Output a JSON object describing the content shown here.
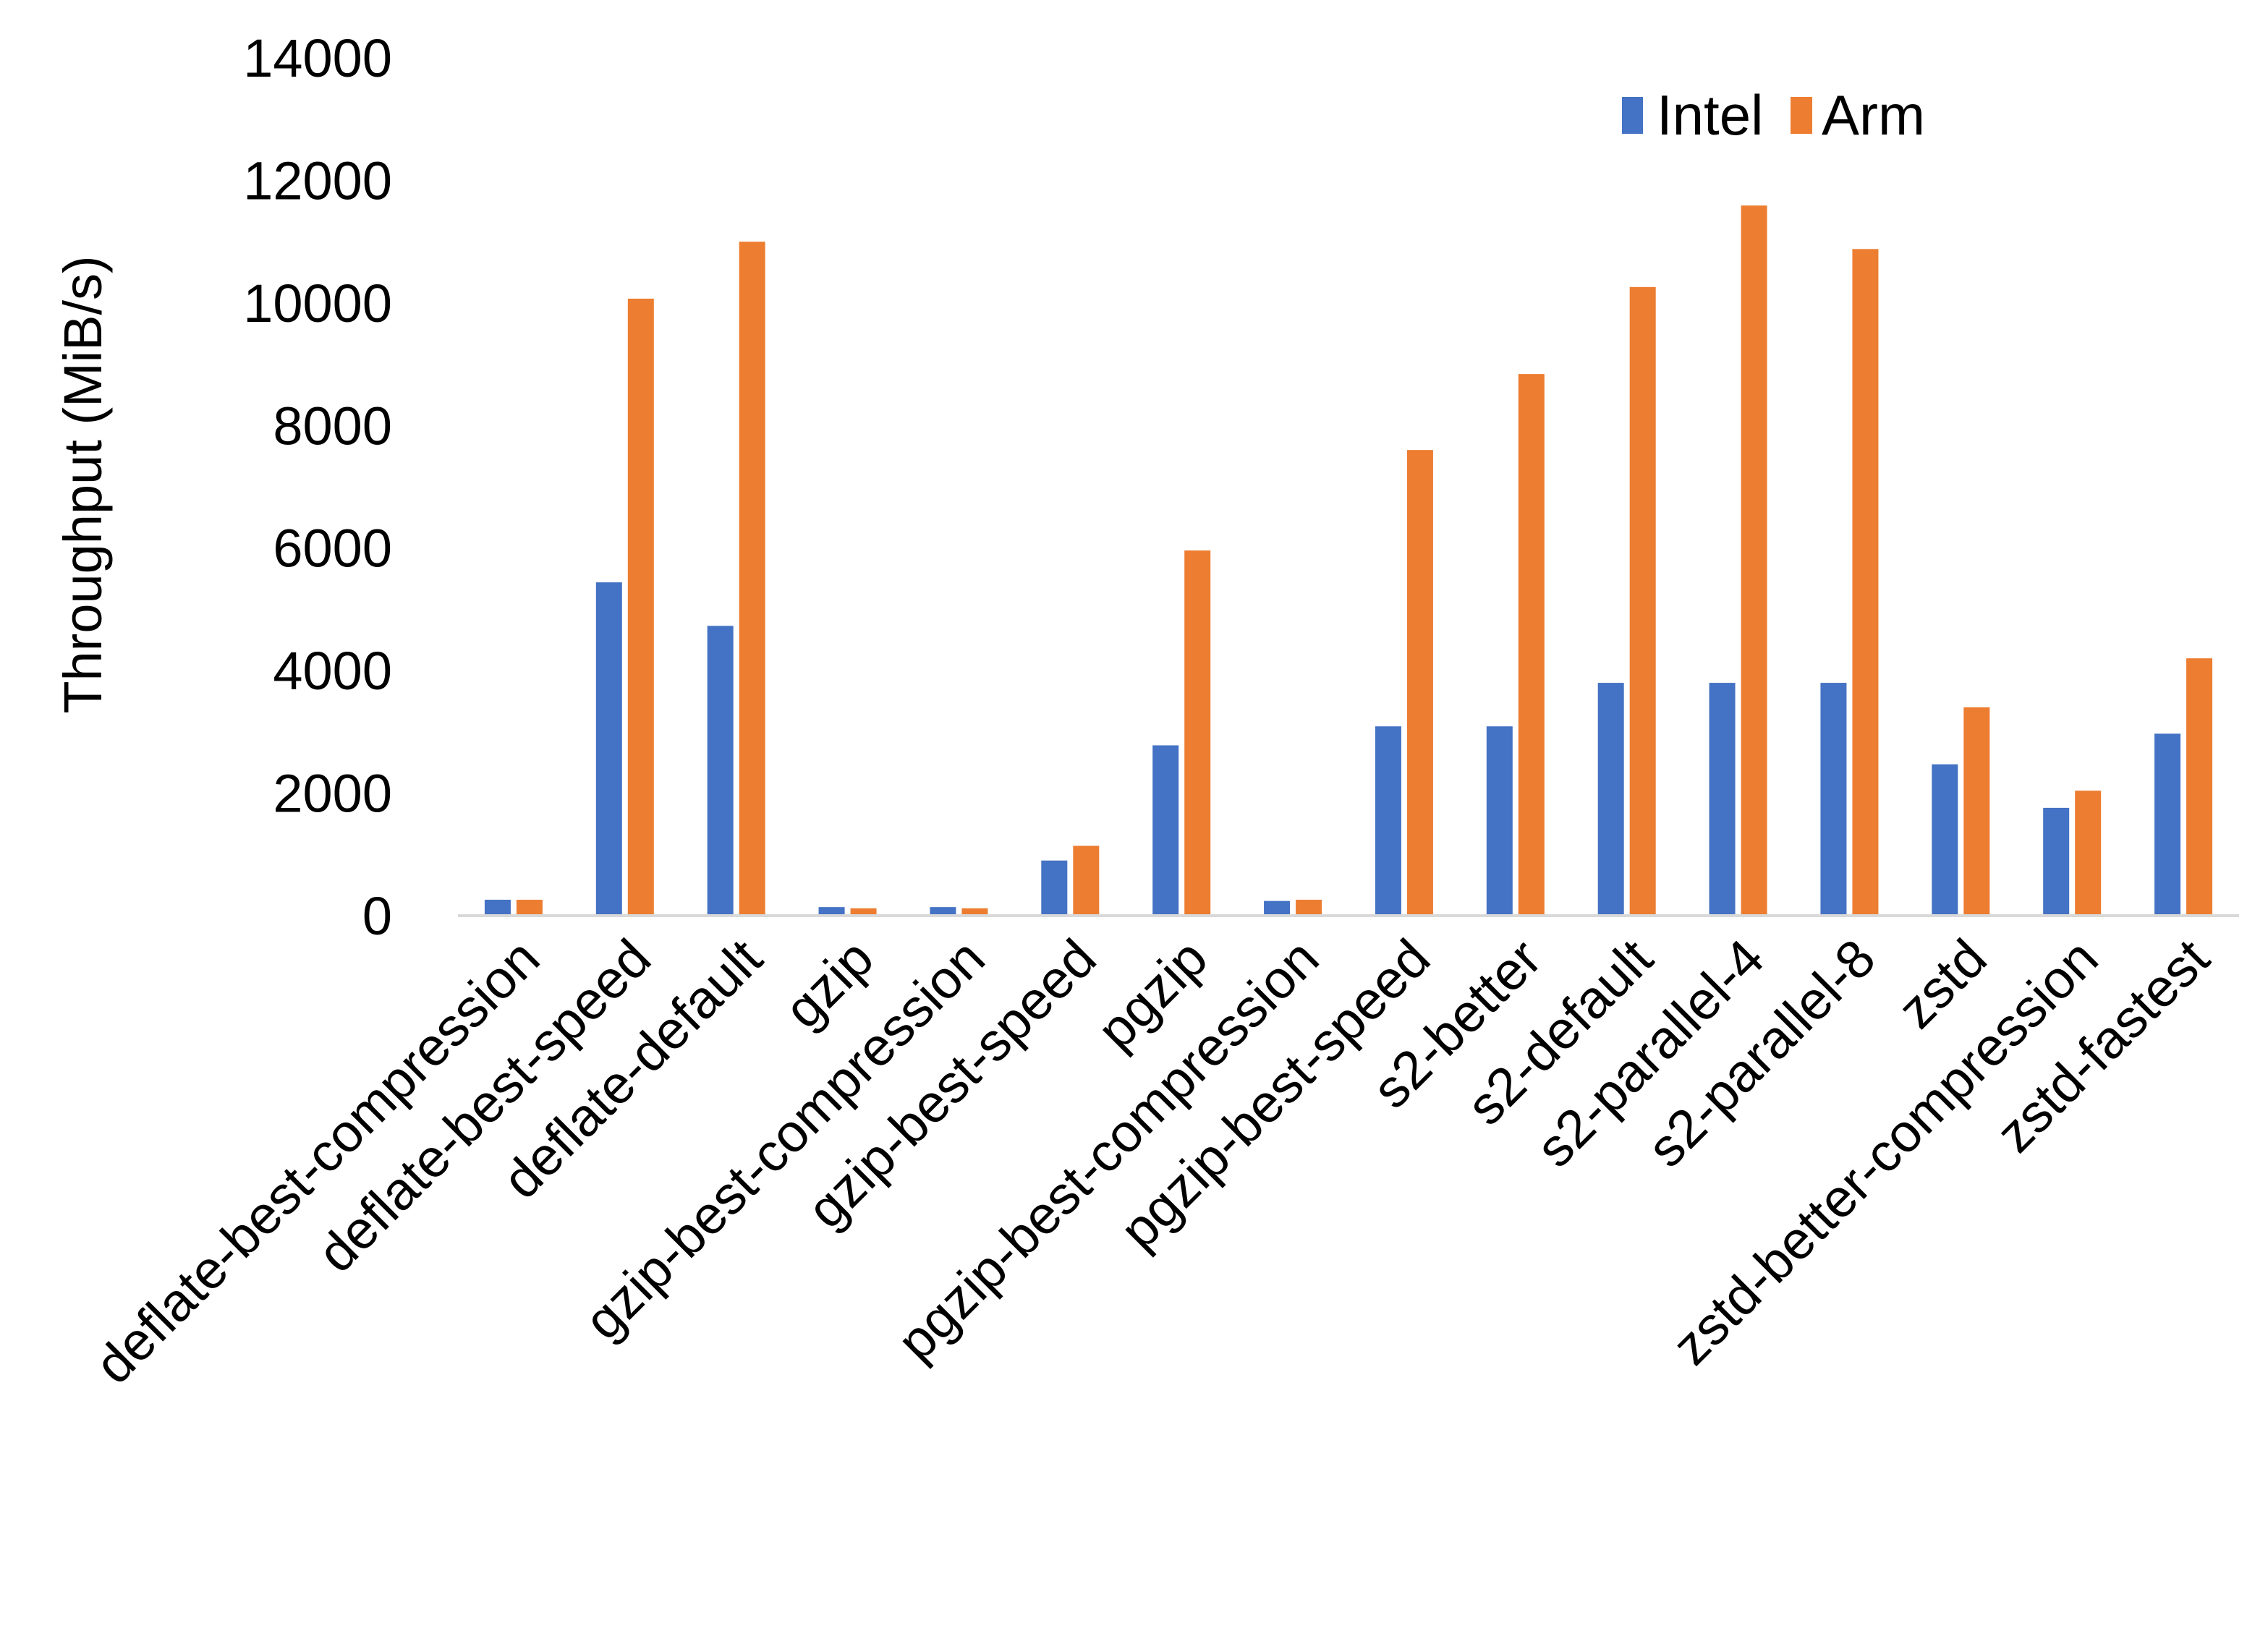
{
  "chart_data": {
    "type": "bar",
    "title": "",
    "xlabel": "",
    "ylabel": "Throughput (MiB/s)",
    "ylim": [
      0,
      14000
    ],
    "yticks": [
      "0",
      "2000",
      "4000",
      "6000",
      "8000",
      "10000",
      "12000",
      "14000"
    ],
    "grid": false,
    "legend": "top-right",
    "categories": [
      "deflate-best-compression",
      "deflate-best-speed",
      "deflate-default",
      "gzip",
      "gzip-best-compression",
      "gzip-best-speed",
      "pgzip",
      "pgzip-best-compression",
      "pgzip-best-speed",
      "s2-better",
      "s2-default",
      "s2-parallel-4",
      "s2-parallel-8",
      "zstd",
      "zstd-better-compression",
      "zstd-fastest"
    ],
    "series": [
      {
        "name": "Intel",
        "color": "#4472C4",
        "values": [
          260,
          5440,
          4730,
          140,
          140,
          900,
          2780,
          240,
          3090,
          3090,
          3800,
          3800,
          3800,
          2470,
          1760,
          2970
        ]
      },
      {
        "name": "Arm",
        "color": "#ED7D31",
        "values": [
          260,
          10070,
          11000,
          120,
          120,
          1140,
          5960,
          260,
          7600,
          8840,
          10260,
          11590,
          10880,
          3400,
          2040,
          4200
        ]
      }
    ]
  }
}
